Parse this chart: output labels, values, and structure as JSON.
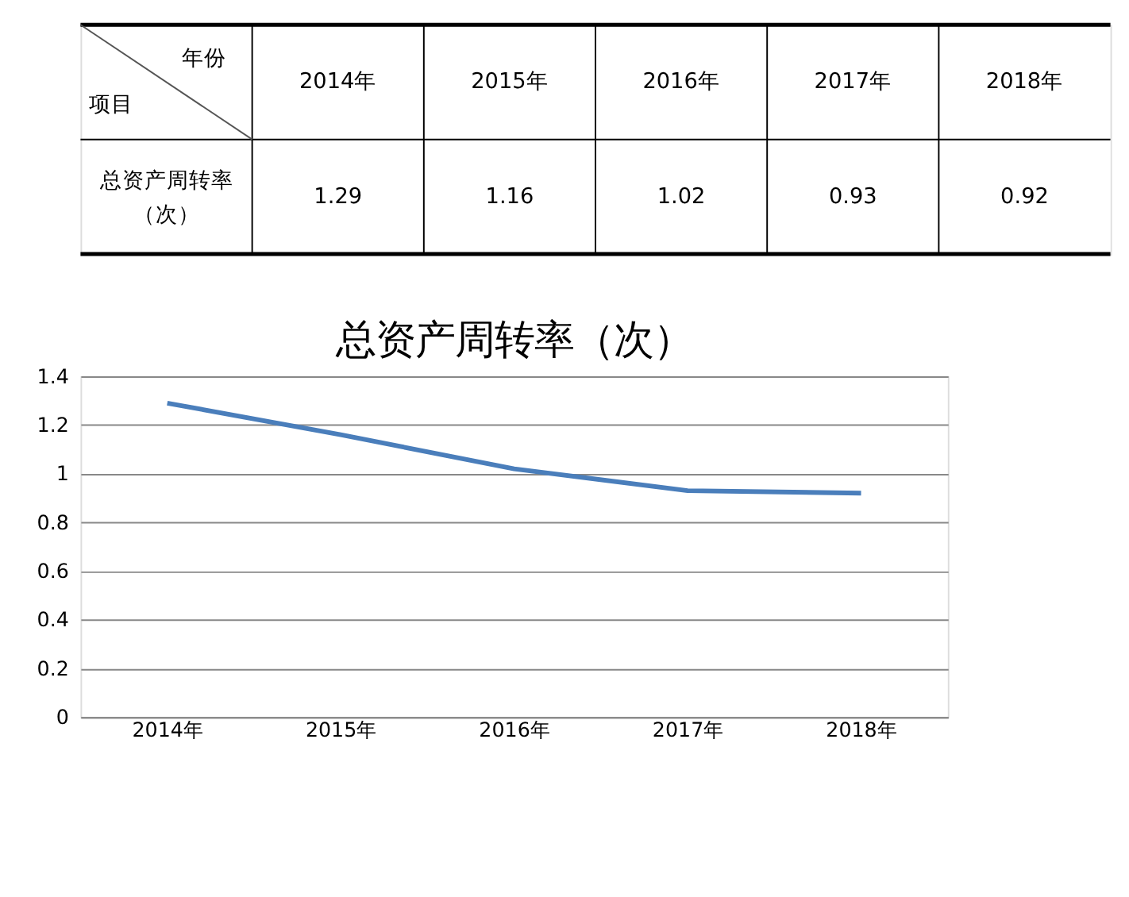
{
  "chart_data": [
    {
      "type": "heatmap",
      "xlabel": "年份",
      "ylabel": "项目",
      "categories": [
        "2014年",
        "2015年",
        "2016年",
        "2017年",
        "2018年"
      ],
      "y_categories": [
        "总资产周转率（次）"
      ],
      "cells": [
        [
          1.29,
          1.16,
          1.02,
          0.93,
          0.92
        ]
      ],
      "data_labels": true
    },
    {
      "type": "line",
      "title": "总资产周转率（次）",
      "categories": [
        "2014年",
        "2015年",
        "2016年",
        "2017年",
        "2018年"
      ],
      "series": [
        {
          "color": "#4a7ebb",
          "values": [
            1.29,
            1.16,
            1.02,
            0.93,
            0.92
          ]
        }
      ],
      "ylim": [
        0,
        1.4
      ],
      "yticks": [
        0,
        0.2,
        0.4,
        0.6,
        0.8,
        1,
        1.2,
        1.4
      ],
      "grid": "y",
      "legend": false,
      "marker": "none",
      "line_style": "solid"
    }
  ]
}
